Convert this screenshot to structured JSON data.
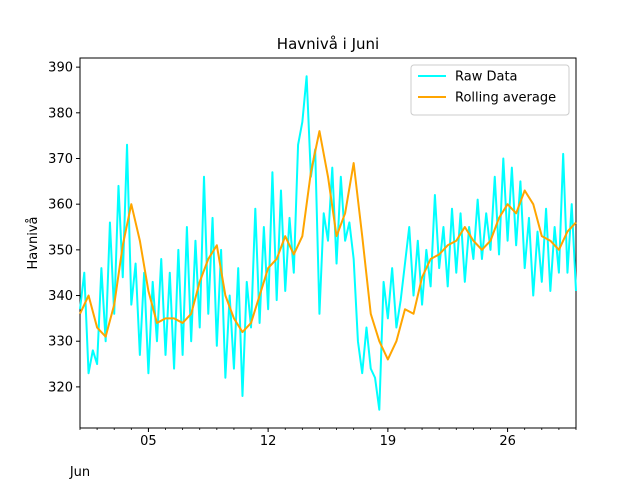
{
  "chart_data": {
    "type": "line",
    "title": "Havnivå i Juni",
    "xlabel": "",
    "ylabel": "Havnivå",
    "x_range": [
      "2024-06-01",
      "2024-06-30"
    ],
    "ylim": [
      311,
      392
    ],
    "y_ticks": [
      320,
      330,
      340,
      350,
      360,
      370,
      380,
      390
    ],
    "x_major_ticks": [
      {
        "date": "2024-06-05",
        "label": "05"
      },
      {
        "date": "2024-06-12",
        "label": "12"
      },
      {
        "date": "2024-06-19",
        "label": "19"
      },
      {
        "date": "2024-06-26",
        "label": "26"
      }
    ],
    "x_offset_label": "Jun",
    "grid": false,
    "legend_position": "top-right",
    "series": [
      {
        "name": "Raw Data",
        "color": "#00ffff",
        "points": [
          [
            "2024-06-01 00:00",
            337
          ],
          [
            "2024-06-01 06:00",
            345
          ],
          [
            "2024-06-01 12:00",
            323
          ],
          [
            "2024-06-01 18:00",
            328
          ],
          [
            "2024-06-02 00:00",
            325
          ],
          [
            "2024-06-02 06:00",
            346
          ],
          [
            "2024-06-02 12:00",
            330
          ],
          [
            "2024-06-02 18:00",
            356
          ],
          [
            "2024-06-03 00:00",
            336
          ],
          [
            "2024-06-03 06:00",
            364
          ],
          [
            "2024-06-03 12:00",
            344
          ],
          [
            "2024-06-03 18:00",
            373
          ],
          [
            "2024-06-04 00:00",
            338
          ],
          [
            "2024-06-04 06:00",
            347
          ],
          [
            "2024-06-04 12:00",
            327
          ],
          [
            "2024-06-04 18:00",
            345
          ],
          [
            "2024-06-05 00:00",
            323
          ],
          [
            "2024-06-05 06:00",
            343
          ],
          [
            "2024-06-05 12:00",
            330
          ],
          [
            "2024-06-05 18:00",
            348
          ],
          [
            "2024-06-06 00:00",
            327
          ],
          [
            "2024-06-06 06:00",
            345
          ],
          [
            "2024-06-06 12:00",
            324
          ],
          [
            "2024-06-06 18:00",
            350
          ],
          [
            "2024-06-07 00:00",
            327
          ],
          [
            "2024-06-07 06:00",
            355
          ],
          [
            "2024-06-07 12:00",
            330
          ],
          [
            "2024-06-07 18:00",
            352
          ],
          [
            "2024-06-08 00:00",
            333
          ],
          [
            "2024-06-08 06:00",
            366
          ],
          [
            "2024-06-08 12:00",
            336
          ],
          [
            "2024-06-08 18:00",
            357
          ],
          [
            "2024-06-09 00:00",
            329
          ],
          [
            "2024-06-09 06:00",
            350
          ],
          [
            "2024-06-09 12:00",
            322
          ],
          [
            "2024-06-09 18:00",
            340
          ],
          [
            "2024-06-10 00:00",
            324
          ],
          [
            "2024-06-10 06:00",
            346
          ],
          [
            "2024-06-10 12:00",
            318
          ],
          [
            "2024-06-10 18:00",
            343
          ],
          [
            "2024-06-11 00:00",
            333
          ],
          [
            "2024-06-11 06:00",
            359
          ],
          [
            "2024-06-11 12:00",
            334
          ],
          [
            "2024-06-11 18:00",
            355
          ],
          [
            "2024-06-12 00:00",
            337
          ],
          [
            "2024-06-12 06:00",
            367
          ],
          [
            "2024-06-12 12:00",
            339
          ],
          [
            "2024-06-12 18:00",
            363
          ],
          [
            "2024-06-13 00:00",
            341
          ],
          [
            "2024-06-13 06:00",
            357
          ],
          [
            "2024-06-13 12:00",
            345
          ],
          [
            "2024-06-13 18:00",
            373
          ],
          [
            "2024-06-14 00:00",
            378
          ],
          [
            "2024-06-14 06:00",
            388
          ],
          [
            "2024-06-14 12:00",
            366
          ],
          [
            "2024-06-14 18:00",
            372
          ],
          [
            "2024-06-15 00:00",
            336
          ],
          [
            "2024-06-15 06:00",
            358
          ],
          [
            "2024-06-15 12:00",
            352
          ],
          [
            "2024-06-15 18:00",
            368
          ],
          [
            "2024-06-16 00:00",
            347
          ],
          [
            "2024-06-16 06:00",
            366
          ],
          [
            "2024-06-16 12:00",
            352
          ],
          [
            "2024-06-16 18:00",
            356
          ],
          [
            "2024-06-17 00:00",
            348
          ],
          [
            "2024-06-17 06:00",
            330
          ],
          [
            "2024-06-17 12:00",
            323
          ],
          [
            "2024-06-17 18:00",
            333
          ],
          [
            "2024-06-18 00:00",
            324
          ],
          [
            "2024-06-18 06:00",
            322
          ],
          [
            "2024-06-18 12:00",
            315
          ],
          [
            "2024-06-18 18:00",
            343
          ],
          [
            "2024-06-19 00:00",
            335
          ],
          [
            "2024-06-19 06:00",
            346
          ],
          [
            "2024-06-19 12:00",
            333
          ],
          [
            "2024-06-19 18:00",
            339
          ],
          [
            "2024-06-20 00:00",
            347
          ],
          [
            "2024-06-20 06:00",
            355
          ],
          [
            "2024-06-20 12:00",
            340
          ],
          [
            "2024-06-20 18:00",
            352
          ],
          [
            "2024-06-21 00:00",
            338
          ],
          [
            "2024-06-21 06:00",
            350
          ],
          [
            "2024-06-21 12:00",
            342
          ],
          [
            "2024-06-21 18:00",
            362
          ],
          [
            "2024-06-22 00:00",
            346
          ],
          [
            "2024-06-22 06:00",
            355
          ],
          [
            "2024-06-22 12:00",
            342
          ],
          [
            "2024-06-22 18:00",
            359
          ],
          [
            "2024-06-23 00:00",
            345
          ],
          [
            "2024-06-23 06:00",
            358
          ],
          [
            "2024-06-23 12:00",
            343
          ],
          [
            "2024-06-23 18:00",
            355
          ],
          [
            "2024-06-24 00:00",
            348
          ],
          [
            "2024-06-24 06:00",
            361
          ],
          [
            "2024-06-24 12:00",
            348
          ],
          [
            "2024-06-24 18:00",
            358
          ],
          [
            "2024-06-25 00:00",
            350
          ],
          [
            "2024-06-25 06:00",
            366
          ],
          [
            "2024-06-25 12:00",
            349
          ],
          [
            "2024-06-25 18:00",
            370
          ],
          [
            "2024-06-26 00:00",
            352
          ],
          [
            "2024-06-26 06:00",
            368
          ],
          [
            "2024-06-26 12:00",
            351
          ],
          [
            "2024-06-26 18:00",
            365
          ],
          [
            "2024-06-27 00:00",
            346
          ],
          [
            "2024-06-27 06:00",
            357
          ],
          [
            "2024-06-27 12:00",
            340
          ],
          [
            "2024-06-27 18:00",
            354
          ],
          [
            "2024-06-28 00:00",
            343
          ],
          [
            "2024-06-28 06:00",
            359
          ],
          [
            "2024-06-28 12:00",
            341
          ],
          [
            "2024-06-28 18:00",
            355
          ],
          [
            "2024-06-29 00:00",
            345
          ],
          [
            "2024-06-29 06:00",
            371
          ],
          [
            "2024-06-29 12:00",
            345
          ],
          [
            "2024-06-29 18:00",
            360
          ],
          [
            "2024-06-30 00:00",
            341
          ]
        ]
      },
      {
        "name": "Rolling average",
        "color": "#ffa500",
        "points": [
          [
            "2024-06-01 00:00",
            336
          ],
          [
            "2024-06-01 12:00",
            340
          ],
          [
            "2024-06-02 00:00",
            333
          ],
          [
            "2024-06-02 12:00",
            331
          ],
          [
            "2024-06-03 00:00",
            338
          ],
          [
            "2024-06-03 12:00",
            351
          ],
          [
            "2024-06-04 00:00",
            360
          ],
          [
            "2024-06-04 12:00",
            352
          ],
          [
            "2024-06-05 00:00",
            341
          ],
          [
            "2024-06-05 12:00",
            334
          ],
          [
            "2024-06-06 00:00",
            335
          ],
          [
            "2024-06-06 12:00",
            335
          ],
          [
            "2024-06-07 00:00",
            334
          ],
          [
            "2024-06-07 12:00",
            336
          ],
          [
            "2024-06-08 00:00",
            343
          ],
          [
            "2024-06-08 12:00",
            348
          ],
          [
            "2024-06-09 00:00",
            351
          ],
          [
            "2024-06-09 12:00",
            340
          ],
          [
            "2024-06-10 00:00",
            335
          ],
          [
            "2024-06-10 12:00",
            332
          ],
          [
            "2024-06-11 00:00",
            334
          ],
          [
            "2024-06-11 12:00",
            340
          ],
          [
            "2024-06-12 00:00",
            346
          ],
          [
            "2024-06-12 12:00",
            348
          ],
          [
            "2024-06-13 00:00",
            353
          ],
          [
            "2024-06-13 12:00",
            349
          ],
          [
            "2024-06-14 00:00",
            353
          ],
          [
            "2024-06-14 12:00",
            367
          ],
          [
            "2024-06-15 00:00",
            376
          ],
          [
            "2024-06-15 12:00",
            366
          ],
          [
            "2024-06-16 00:00",
            353
          ],
          [
            "2024-06-16 12:00",
            358
          ],
          [
            "2024-06-17 00:00",
            369
          ],
          [
            "2024-06-17 12:00",
            353
          ],
          [
            "2024-06-18 00:00",
            336
          ],
          [
            "2024-06-18 12:00",
            330
          ],
          [
            "2024-06-19 00:00",
            326
          ],
          [
            "2024-06-19 12:00",
            330
          ],
          [
            "2024-06-20 00:00",
            337
          ],
          [
            "2024-06-20 12:00",
            336
          ],
          [
            "2024-06-21 00:00",
            344
          ],
          [
            "2024-06-21 12:00",
            348
          ],
          [
            "2024-06-22 00:00",
            349
          ],
          [
            "2024-06-22 12:00",
            351
          ],
          [
            "2024-06-23 00:00",
            352
          ],
          [
            "2024-06-23 12:00",
            355
          ],
          [
            "2024-06-24 00:00",
            352
          ],
          [
            "2024-06-24 12:00",
            350
          ],
          [
            "2024-06-25 00:00",
            352
          ],
          [
            "2024-06-25 12:00",
            357
          ],
          [
            "2024-06-26 00:00",
            360
          ],
          [
            "2024-06-26 12:00",
            358
          ],
          [
            "2024-06-27 00:00",
            363
          ],
          [
            "2024-06-27 12:00",
            360
          ],
          [
            "2024-06-28 00:00",
            353
          ],
          [
            "2024-06-28 12:00",
            352
          ],
          [
            "2024-06-29 00:00",
            350
          ],
          [
            "2024-06-29 12:00",
            354
          ],
          [
            "2024-06-30 00:00",
            356
          ]
        ]
      }
    ]
  }
}
